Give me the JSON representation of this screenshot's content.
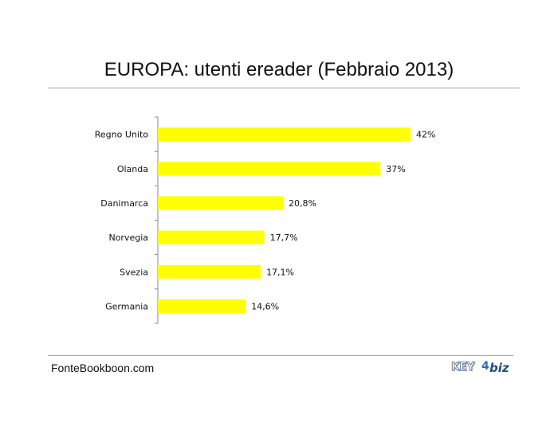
{
  "title": "EUROPA: utenti ereader (Febbraio 2013)",
  "source": "FonteBookboon.com",
  "logo": {
    "key": "KEY",
    "four": "4",
    "biz": "biz"
  },
  "chart_data": {
    "type": "bar",
    "orientation": "horizontal",
    "categories": [
      "Regno Unito",
      "Olanda",
      "Danimarca",
      "Norvegia",
      "Svezia",
      "Germania"
    ],
    "values": [
      42,
      37,
      20.8,
      17.7,
      17.1,
      14.6
    ],
    "value_labels": [
      "42%",
      "37%",
      "20,8%",
      "17,7%",
      "17,1%",
      "14,6%"
    ],
    "unit": "%",
    "bar_color": "#ffff00",
    "xlim": [
      0,
      42
    ]
  }
}
